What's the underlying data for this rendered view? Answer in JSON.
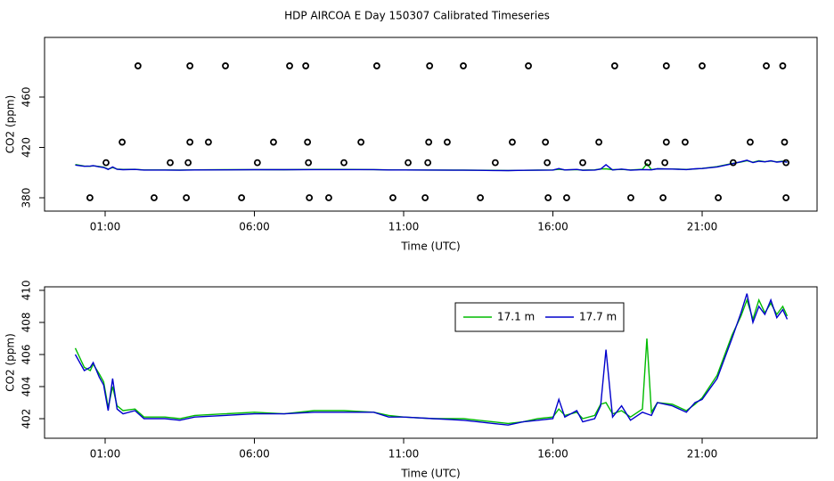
{
  "chart_data": [
    {
      "type": "scatter",
      "title": "HDP AIRCOA E  Day 150307  Calibrated Timeseries",
      "xlabel": "Time (UTC)",
      "ylabel": "CO2 (ppm)",
      "xlim": [
        -1.03,
        24.85
      ],
      "xticks": [
        {
          "value": 1,
          "label": "01:00"
        },
        {
          "value": 6,
          "label": "06:00"
        },
        {
          "value": 11,
          "label": "11:00"
        },
        {
          "value": 16,
          "label": "16:00"
        },
        {
          "value": 21,
          "label": "21:00"
        }
      ],
      "ylim": [
        369.4,
        507.4
      ],
      "yticks": [
        380,
        420,
        460
      ],
      "color": "#000000",
      "x": [
        2.1,
        3.84,
        5.03,
        7.18,
        7.72,
        10.1,
        11.87,
        13.0,
        15.18,
        18.07,
        19.8,
        21.0,
        23.15,
        23.7,
        1.57,
        3.84,
        4.46,
        6.64,
        7.78,
        9.57,
        11.84,
        12.46,
        14.64,
        15.75,
        17.54,
        19.8,
        20.43,
        22.61,
        23.76,
        1.03,
        3.18,
        3.78,
        6.1,
        7.81,
        9.0,
        11.15,
        11.81,
        14.07,
        15.81,
        17.0,
        19.18,
        19.75,
        22.04,
        23.81,
        0.49,
        2.64,
        3.72,
        5.57,
        7.84,
        8.49,
        10.64,
        11.72,
        13.57,
        15.84,
        16.46,
        18.61,
        19.69,
        21.54,
        23.81
      ],
      "values": [
        484.8,
        484.8,
        484.8,
        484.8,
        484.8,
        484.8,
        484.8,
        484.8,
        484.8,
        484.8,
        484.8,
        484.8,
        484.8,
        484.8,
        424.2,
        424.2,
        424.2,
        424.2,
        424.2,
        424.2,
        424.2,
        424.2,
        424.2,
        424.2,
        424.2,
        424.2,
        424.2,
        424.2,
        424.2,
        407.9,
        407.9,
        407.9,
        407.9,
        407.9,
        407.9,
        407.9,
        407.9,
        407.9,
        407.9,
        407.9,
        407.9,
        407.9,
        407.9,
        407.9,
        380,
        380,
        380,
        380,
        380,
        380,
        380,
        380,
        380,
        380,
        380,
        380,
        380,
        380,
        380
      ]
    },
    {
      "type": "line",
      "xlabel": "Time (UTC)",
      "ylabel": "CO2 (ppm)",
      "xlim": [
        -1.03,
        24.85
      ],
      "xticks": [
        {
          "value": 1,
          "label": "01:00"
        },
        {
          "value": 6,
          "label": "06:00"
        },
        {
          "value": 11,
          "label": "11:00"
        },
        {
          "value": 16,
          "label": "16:00"
        },
        {
          "value": 21,
          "label": "21:00"
        }
      ],
      "ylim": [
        400.78,
        410.22
      ],
      "yticks": [
        402,
        404,
        406,
        408,
        410
      ],
      "legend": "top-right",
      "x": [
        0,
        0.3,
        0.5,
        0.6,
        0.8,
        0.95,
        1.1,
        1.25,
        1.4,
        1.6,
        2,
        2.3,
        3,
        3.5,
        4,
        5,
        6,
        7,
        8,
        9,
        10,
        10.5,
        11,
        12,
        13,
        13.5,
        14,
        14.5,
        15,
        15.5,
        16,
        16.2,
        16.4,
        16.8,
        17,
        17.4,
        17.6,
        17.78,
        18,
        18.3,
        18.6,
        19,
        19.15,
        19.3,
        19.5,
        20,
        20.47,
        20.76,
        21,
        21.5,
        22,
        22.3,
        22.5,
        22.7,
        22.9,
        23.1,
        23.3,
        23.5,
        23.7,
        23.85
      ],
      "series": [
        {
          "name": "17.1 m",
          "color": "#00bb00",
          "values": [
            406.4,
            405.2,
            405.0,
            405.4,
            404.8,
            404.3,
            402.7,
            404.0,
            402.8,
            402.5,
            402.6,
            402.1,
            402.1,
            402.0,
            402.2,
            402.3,
            402.4,
            402.3,
            402.5,
            402.5,
            402.4,
            402.2,
            402.1,
            402.0,
            402.0,
            401.9,
            401.8,
            401.7,
            401.8,
            402.0,
            402.1,
            402.6,
            402.2,
            402.4,
            402.0,
            402.2,
            402.9,
            403.0,
            402.3,
            402.5,
            402.1,
            402.6,
            407.0,
            402.4,
            403.0,
            402.9,
            402.5,
            402.9,
            403.3,
            404.7,
            407.2,
            408.4,
            409.4,
            408.2,
            409.4,
            408.6,
            409.2,
            408.5,
            409.0,
            408.4
          ]
        },
        {
          "name": "17.7 m",
          "color": "#0000cc",
          "values": [
            406.0,
            405.0,
            405.2,
            405.5,
            404.6,
            404.1,
            402.5,
            404.5,
            402.6,
            402.3,
            402.5,
            402.0,
            402.0,
            401.9,
            402.1,
            402.2,
            402.3,
            402.3,
            402.4,
            402.4,
            402.4,
            402.1,
            402.1,
            402.0,
            401.9,
            401.8,
            401.7,
            401.6,
            401.8,
            401.9,
            402.0,
            403.2,
            402.1,
            402.5,
            401.8,
            402.0,
            402.8,
            406.3,
            402.1,
            402.8,
            401.9,
            402.4,
            402.3,
            402.2,
            403.0,
            402.8,
            402.4,
            403.0,
            403.2,
            404.5,
            407.0,
            408.6,
            409.8,
            408.0,
            409.0,
            408.5,
            409.4,
            408.3,
            408.8,
            408.2
          ]
        }
      ]
    }
  ]
}
